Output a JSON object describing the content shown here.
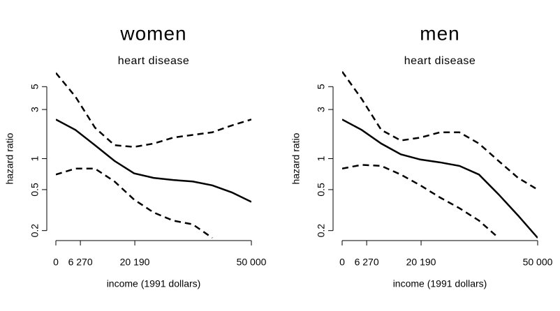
{
  "chart_data": [
    {
      "type": "line",
      "title": "women",
      "subtitle": "heart disease",
      "xlabel": "income (1991 dollars)",
      "ylabel": "hazard ratio",
      "x": [
        0,
        5000,
        10000,
        15000,
        20000,
        25000,
        30000,
        35000,
        40000,
        45000,
        50000
      ],
      "series": [
        {
          "color": "#000000",
          "dashed": false,
          "values": [
            2.4,
            1.9,
            1.35,
            0.95,
            0.72,
            0.65,
            0.62,
            0.6,
            0.55,
            0.47,
            0.38
          ]
        },
        {
          "color": "#000000",
          "dashed": true,
          "values": [
            6.8,
            4.0,
            2.0,
            1.35,
            1.3,
            1.4,
            1.6,
            1.7,
            1.8,
            2.1,
            2.4
          ]
        },
        {
          "color": "#000000",
          "dashed": true,
          "values": [
            0.7,
            0.8,
            0.8,
            0.6,
            0.4,
            0.3,
            0.25,
            0.23,
            0.17,
            null,
            null
          ]
        }
      ],
      "xlim": [
        0,
        50000
      ],
      "xticks": [
        0,
        {
          "value": 6270,
          "label": "6 270"
        },
        {
          "value": 20190,
          "label": "20 190"
        },
        {
          "value": 50000,
          "label": "50 000"
        }
      ],
      "ylim": [
        0.16,
        7.3
      ],
      "yticks": [
        0.2,
        0.5,
        1,
        3,
        5
      ],
      "ylog": true,
      "grid": false
    },
    {
      "type": "line",
      "title": "men",
      "subtitle": "heart disease",
      "xlabel": "income (1991 dollars)",
      "ylabel": "hazard ratio",
      "x": [
        0,
        5000,
        10000,
        15000,
        20000,
        25000,
        30000,
        35000,
        40000,
        45000,
        50000
      ],
      "series": [
        {
          "color": "#000000",
          "dashed": false,
          "values": [
            2.4,
            1.9,
            1.4,
            1.1,
            0.98,
            0.92,
            0.85,
            0.7,
            0.45,
            0.28,
            0.17
          ]
        },
        {
          "color": "#000000",
          "dashed": true,
          "values": [
            7.0,
            3.8,
            1.9,
            1.5,
            1.6,
            1.8,
            1.8,
            1.4,
            0.95,
            0.65,
            0.5
          ]
        },
        {
          "color": "#000000",
          "dashed": true,
          "values": [
            0.8,
            0.87,
            0.85,
            0.7,
            0.55,
            0.42,
            0.33,
            0.25,
            0.17,
            null,
            null
          ]
        }
      ],
      "xlim": [
        0,
        50000
      ],
      "xticks": [
        0,
        {
          "value": 6270,
          "label": "6 270"
        },
        {
          "value": 20190,
          "label": "20 190"
        },
        {
          "value": 50000,
          "label": "50 000"
        }
      ],
      "ylim": [
        0.16,
        7.3
      ],
      "yticks": [
        0.2,
        0.5,
        1,
        3,
        5
      ],
      "ylog": true,
      "grid": false
    }
  ]
}
